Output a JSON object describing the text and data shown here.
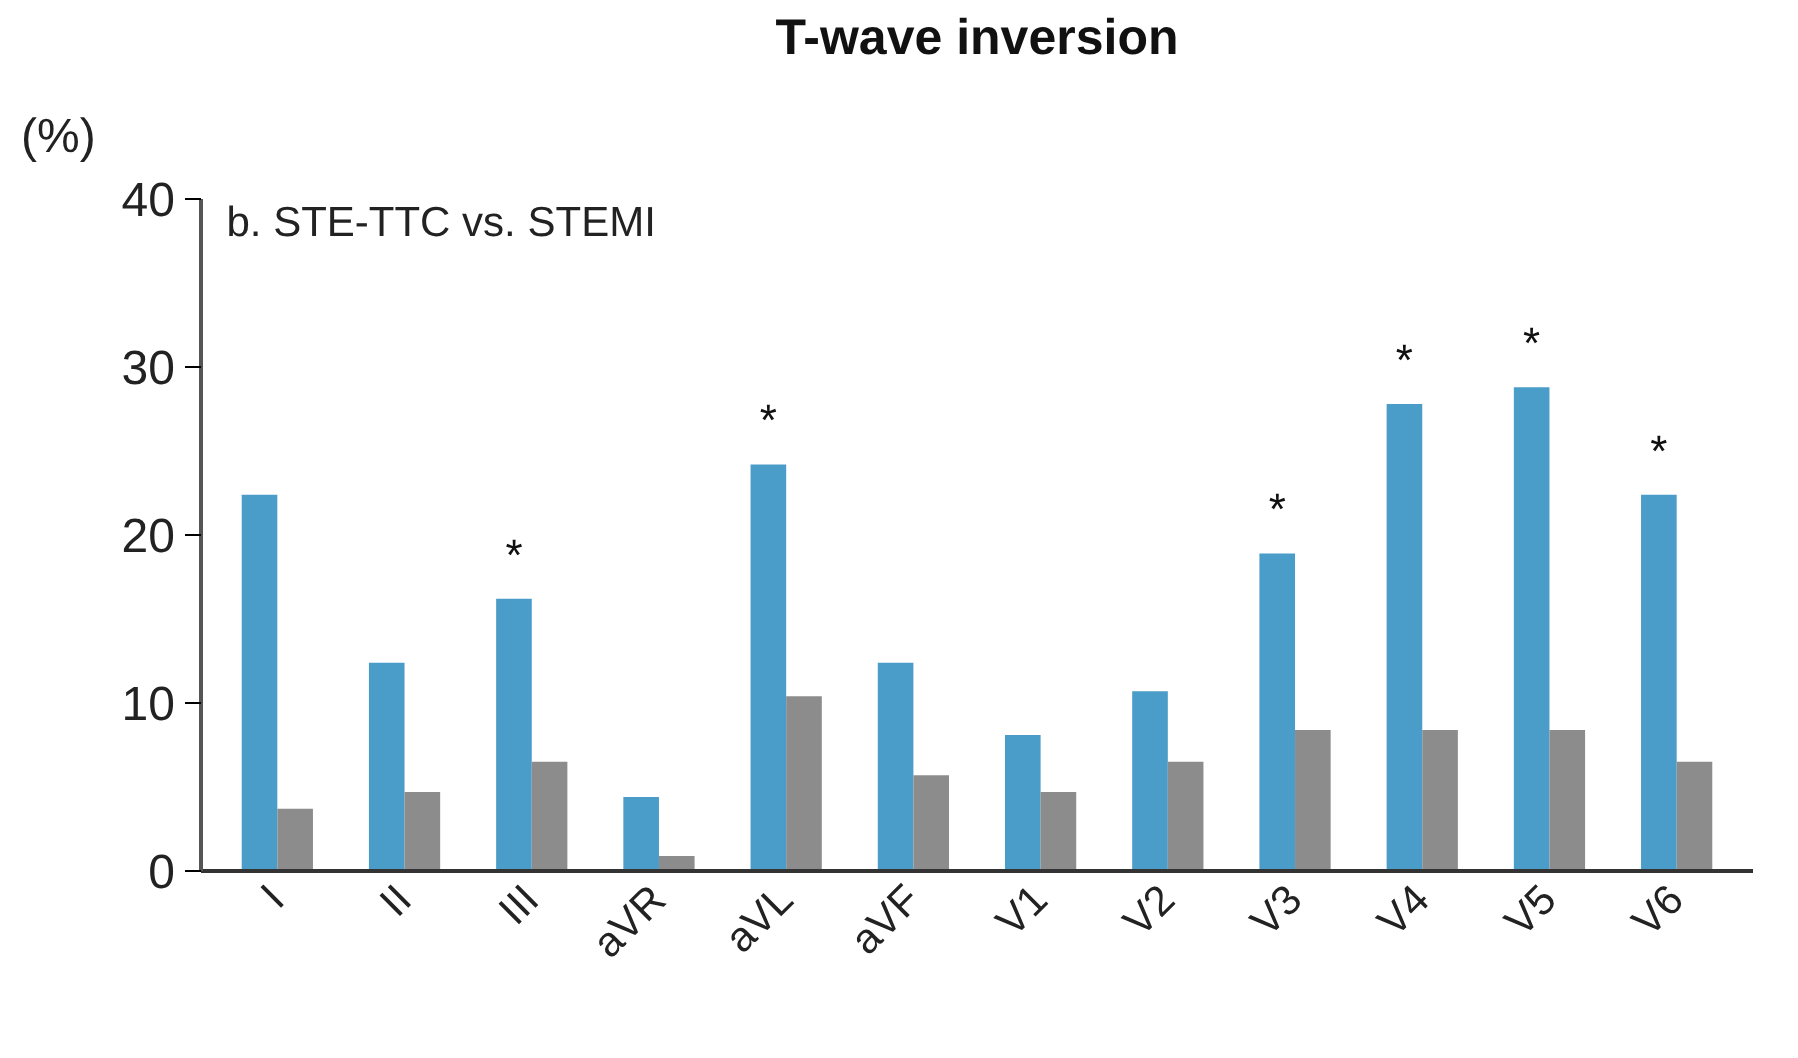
{
  "chart_data": {
    "type": "bar",
    "title": "T-wave inversion",
    "subtitle": "b. STE-TTC vs. STEMI",
    "ylabel": "(%)",
    "categories": [
      "I",
      "II",
      "III",
      "aVR",
      "aVL",
      "aVF",
      "V1",
      "V2",
      "V3",
      "V4",
      "V5",
      "V6"
    ],
    "series": [
      {
        "color": "#4a9cc9",
        "values": [
          22.4,
          12.4,
          16.2,
          4.4,
          24.2,
          12.4,
          8.1,
          10.7,
          18.9,
          27.8,
          28.8,
          22.4
        ]
      },
      {
        "color": "#8c8c8c",
        "values": [
          3.7,
          4.7,
          6.5,
          0.9,
          10.4,
          5.7,
          4.7,
          6.5,
          8.4,
          8.4,
          8.4,
          6.5
        ]
      }
    ],
    "ylim": [
      0,
      40
    ],
    "yticks": [
      0,
      10,
      20,
      30,
      40
    ],
    "grid": false,
    "annotations": [
      {
        "text": "*",
        "x": "III",
        "y": 16.2
      },
      {
        "text": "*",
        "x": "aVL",
        "y": 24.2
      },
      {
        "text": "*",
        "x": "V3",
        "y": 18.9
      },
      {
        "text": "*",
        "x": "V4",
        "y": 27.8
      },
      {
        "text": "*",
        "x": "V5",
        "y": 28.8
      },
      {
        "text": "*",
        "x": "V6",
        "y": 22.4
      }
    ]
  }
}
